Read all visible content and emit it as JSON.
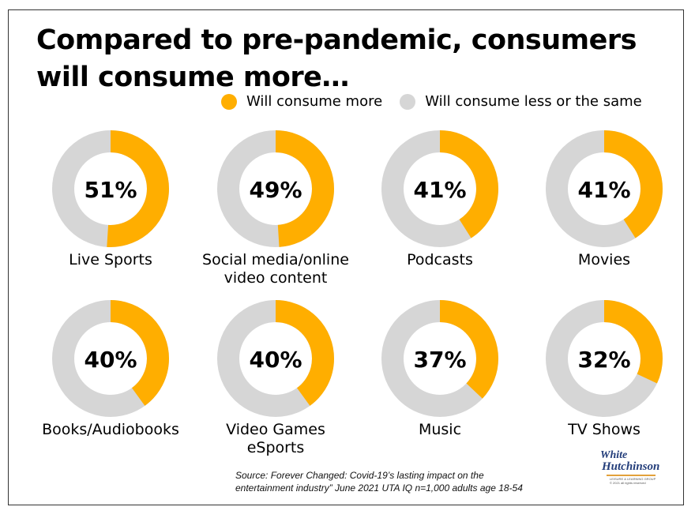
{
  "title": "Compared to pre-pandemic, consumers will consume more…",
  "legend": {
    "more": {
      "label": "Will consume more",
      "color": "#FFAE00"
    },
    "less": {
      "label": "Will consume less or the same",
      "color": "#D6D6D6"
    }
  },
  "chart_data": {
    "type": "pie",
    "title": "Compared to pre-pandemic, consumers will consume more…",
    "series_names": [
      "Will consume more",
      "Will consume less or the same"
    ],
    "colors": {
      "more": "#FFAE00",
      "less": "#D6D6D6"
    },
    "items": [
      {
        "label": [
          "Live Sports"
        ],
        "more": 51,
        "less": 49,
        "value_label": "51%"
      },
      {
        "label": [
          "Social media/online",
          "video content"
        ],
        "more": 49,
        "less": 51,
        "value_label": "49%"
      },
      {
        "label": [
          "Podcasts"
        ],
        "more": 41,
        "less": 59,
        "value_label": "41%"
      },
      {
        "label": [
          "Movies"
        ],
        "more": 41,
        "less": 59,
        "value_label": "41%"
      },
      {
        "label": [
          "Books/Audiobooks"
        ],
        "more": 40,
        "less": 60,
        "value_label": "40%"
      },
      {
        "label": [
          "Video Games",
          "eSports"
        ],
        "more": 40,
        "less": 60,
        "value_label": "40%"
      },
      {
        "label": [
          "Music"
        ],
        "more": 37,
        "less": 63,
        "value_label": "37%"
      },
      {
        "label": [
          "TV Shows"
        ],
        "more": 32,
        "less": 68,
        "value_label": "32%"
      }
    ]
  },
  "source": {
    "line1": "Source: Forever Changed: Covid-19’s lasting impact on the",
    "line2": "entertainment industry” June 2021 UTA IQ n=1,000 adults age 18-54"
  },
  "logo": {
    "line1": "White",
    "line2": "Hutchinson",
    "tagline": "LEISURE & LEARNING GROUP",
    "copyright": "© 2021 all rights reserved"
  }
}
